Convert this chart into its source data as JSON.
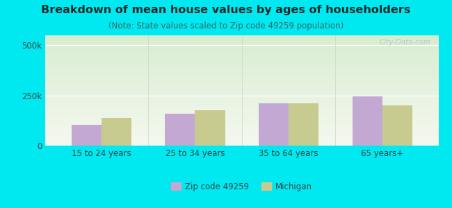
{
  "title": "Breakdown of mean house values by ages of householders",
  "subtitle": "(Note: State values scaled to Zip code 49259 population)",
  "categories": [
    "15 to 24 years",
    "25 to 34 years",
    "35 to 64 years",
    "65 years+"
  ],
  "zip_values": [
    105000,
    160000,
    210000,
    245000
  ],
  "state_values": [
    138000,
    175000,
    210000,
    200000
  ],
  "zip_color": "#c4a8d4",
  "state_color": "#c8cb90",
  "ylim": [
    0,
    550000
  ],
  "ytick_labels": [
    "0",
    "250k",
    "500k"
  ],
  "ytick_values": [
    0,
    250000,
    500000
  ],
  "background_outer": "#00e8f0",
  "bg_top_left": "#e0f0d8",
  "bg_bottom_right": "#f8f8f0",
  "watermark": "City-Data.com",
  "legend_zip_label": "Zip code 49259",
  "legend_state_label": "Michigan",
  "title_fontsize": 11.5,
  "subtitle_fontsize": 8.5,
  "title_color": "#1a2a2a",
  "subtitle_color": "#336666",
  "bar_width": 0.32
}
